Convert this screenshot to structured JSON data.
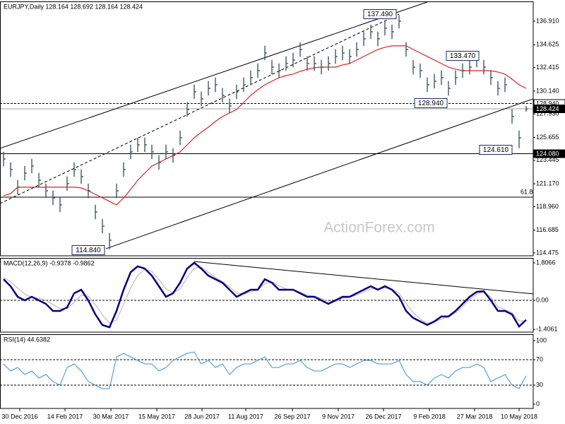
{
  "chart_data": [
    {
      "type": "ohlc",
      "title": "EURJPY,Daily  128.164 128.692 128.164 128.424",
      "watermark": "ActionForex.com",
      "xlim": [
        -0.5,
        75
      ],
      "xticks": [
        {
          "value": 2.3,
          "label": "30 Dec 2016"
        },
        {
          "value": 8.7,
          "label": "14 Feb 2017"
        },
        {
          "value": 15.2,
          "label": "30 Mar 2017"
        },
        {
          "value": 21.7,
          "label": "15 May 2017"
        },
        {
          "value": 28.1,
          "label": "28 Jun 2017"
        },
        {
          "value": 34.3,
          "label": "11 Aug 2017"
        },
        {
          "value": 40.9,
          "label": "26 Sep 2017"
        },
        {
          "value": 47.4,
          "label": "9 Nov 2017"
        },
        {
          "value": 53.8,
          "label": "26 Dec 2017"
        },
        {
          "value": 60.3,
          "label": "9 Feb 2018"
        },
        {
          "value": 66.7,
          "label": "27 Mar 2018"
        },
        {
          "value": 73.0,
          "label": "10 May 2018"
        }
      ],
      "ylim": [
        114.2,
        138.82
      ],
      "yticks": [
        {
          "value": 136.91,
          "label": "136.910"
        },
        134.625,
        132.415,
        {
          "value": 130.14,
          "label": "130.140"
        },
        {
          "value": 127.93,
          "label": "127.930"
        },
        125.655,
        123.445,
        {
          "value": 121.17,
          "label": "121.170"
        },
        {
          "value": 118.96,
          "label": "118.960"
        },
        116.685,
        114.475
      ],
      "color": "#2f4f4f",
      "high": [
        124.27,
        123.25,
        121.54,
        122.9,
        123.59,
        122.22,
        121.19,
        120.51,
        119.83,
        121.88,
        123.25,
        122.56,
        121.19,
        119.14,
        117.77,
        116.41,
        121.19,
        123.25,
        124.96,
        125.64,
        125.64,
        124.96,
        123.93,
        124.96,
        124.61,
        126.32,
        129.06,
        130.77,
        130.09,
        131.11,
        131.45,
        130.43,
        129.4,
        130.77,
        131.45,
        132.14,
        132.82,
        134.53,
        133.16,
        132.82,
        133.51,
        133.85,
        134.87,
        133.51,
        133.51,
        133.16,
        133.51,
        134.19,
        134.53,
        134.19,
        134.87,
        135.9,
        136.58,
        135.9,
        136.93,
        136.58,
        137.49,
        134.87,
        133.16,
        132.82,
        131.45,
        131.8,
        132.14,
        131.11,
        132.14,
        132.82,
        133.16,
        133.47,
        133.16,
        132.14,
        131.11,
        131.45,
        128.38,
        126.32,
        128.69
      ],
      "low": [
        122.87,
        121.85,
        120.14,
        121.5,
        122.19,
        120.82,
        119.79,
        119.11,
        118.43,
        120.48,
        121.85,
        121.16,
        119.79,
        117.74,
        116.37,
        114.84,
        119.79,
        121.85,
        123.56,
        124.24,
        124.24,
        123.56,
        122.53,
        123.56,
        123.21,
        124.92,
        127.66,
        129.37,
        128.69,
        129.71,
        130.05,
        129.03,
        128.0,
        129.37,
        130.05,
        130.74,
        131.42,
        133.13,
        131.76,
        131.42,
        132.11,
        132.45,
        133.47,
        132.11,
        132.11,
        131.76,
        132.11,
        132.79,
        133.13,
        132.79,
        133.47,
        134.5,
        135.18,
        134.5,
        135.53,
        135.18,
        136.21,
        133.47,
        131.76,
        131.42,
        130.05,
        130.4,
        130.74,
        129.71,
        130.74,
        131.42,
        131.76,
        132.45,
        131.76,
        130.74,
        129.71,
        130.05,
        126.98,
        124.61,
        128.16
      ],
      "close": [
        123.57,
        122.55,
        120.84,
        122.2,
        122.89,
        121.52,
        120.49,
        119.81,
        119.13,
        121.18,
        122.55,
        121.86,
        120.49,
        118.44,
        117.07,
        115.71,
        120.49,
        122.55,
        124.26,
        124.94,
        124.94,
        124.26,
        123.23,
        124.26,
        123.91,
        125.62,
        128.36,
        130.07,
        129.39,
        130.41,
        130.75,
        129.73,
        128.7,
        130.07,
        130.75,
        131.44,
        132.12,
        133.83,
        132.46,
        132.12,
        132.81,
        133.15,
        134.17,
        132.81,
        132.81,
        132.46,
        132.81,
        133.49,
        133.83,
        133.49,
        134.17,
        135.2,
        135.88,
        135.2,
        136.23,
        135.88,
        136.91,
        134.17,
        132.46,
        132.12,
        130.75,
        131.1,
        131.44,
        130.41,
        131.44,
        132.12,
        132.46,
        133.15,
        132.46,
        131.44,
        130.41,
        130.75,
        127.68,
        125.62,
        128.42
      ],
      "ma": {
        "color": "#e02020",
        "values": [
          120.02,
          120.22,
          120.84,
          120.84,
          120.84,
          120.84,
          120.84,
          120.84,
          120.84,
          120.84,
          120.84,
          120.77,
          120.49,
          120.15,
          119.81,
          119.47,
          119.13,
          119.81,
          120.63,
          121.52,
          122.2,
          122.89,
          123.23,
          123.57,
          123.91,
          124.26,
          124.94,
          125.62,
          126.17,
          126.65,
          127.2,
          127.68,
          128.02,
          128.36,
          129.04,
          129.73,
          130.28,
          130.75,
          131.1,
          131.44,
          131.64,
          131.78,
          132.05,
          132.26,
          132.4,
          132.46,
          132.46,
          132.46,
          132.67,
          132.81,
          133.15,
          133.49,
          133.83,
          134.17,
          134.38,
          134.52,
          134.52,
          134.52,
          134.17,
          133.83,
          133.49,
          133.15,
          132.81,
          132.46,
          132.26,
          132.12,
          132.12,
          132.12,
          132.12,
          132.12,
          131.99,
          131.78,
          131.3,
          130.75,
          130.41
        ]
      },
      "trendlines": [
        {
          "x": [
            -0.5,
            60
          ],
          "y": [
            124.6,
            138.76
          ],
          "style": "solid"
        },
        {
          "x": [
            14.5,
            75
          ],
          "y": [
            114.89,
            129.39
          ],
          "style": "solid"
        },
        {
          "x": [
            -0.5,
            56
          ],
          "y": [
            119.26,
            137.59
          ],
          "style": "dashed"
        }
      ],
      "levels": [
        {
          "value": 128.94,
          "label": "128.940",
          "style": "dashed"
        },
        {
          "value": 128.424,
          "label": "128.424",
          "style": "current"
        },
        {
          "value": 124.08,
          "label": "124.080",
          "style": "solid"
        },
        {
          "value": 119.88,
          "label": "61.8",
          "style": "fib"
        }
      ],
      "annotations": [
        "137.490",
        "133.470",
        "128.940",
        "124.610",
        "114.840"
      ]
    },
    {
      "type": "macd",
      "title": "MACD(12,26,9) -0.9378 -0.9862",
      "ylim": [
        -1.534,
        2.045
      ],
      "yticks": [
        1.8066,
        {
          "value": 0,
          "label": "0.00"
        },
        -1.4061
      ],
      "grid": "dashed",
      "series": [
        {
          "color": "#000080",
          "width": 2.5,
          "values": [
            1.02,
            0.68,
            0.17,
            0,
            0.17,
            0,
            -0.17,
            -0.51,
            -0.51,
            -0.34,
            0.34,
            0.51,
            0,
            -0.68,
            -1.19,
            -1.3,
            -0.51,
            0.51,
            1.36,
            1.64,
            1.53,
            1.19,
            0.68,
            0.17,
            0.34,
            0.85,
            1.53,
            1.81,
            1.53,
            1.19,
            1.02,
            0.85,
            0.51,
            0.17,
            0.34,
            0.51,
            0.51,
            1.02,
            0.85,
            0.51,
            0.51,
            0.51,
            0.34,
            0.17,
            0.17,
            0,
            -0.17,
            0,
            0.17,
            0.17,
            0.34,
            0.51,
            0.68,
            0.51,
            0.68,
            0.51,
            0.17,
            -0.51,
            -0.85,
            -1.02,
            -1.19,
            -1.02,
            -0.78,
            -0.78,
            -0.51,
            -0.17,
            0.17,
            0.41,
            0.44,
            0,
            -0.51,
            -0.51,
            -0.68,
            -1.26,
            -0.94
          ]
        },
        {
          "color": "#c8a8a8",
          "width": 1,
          "values": [
            1.1,
            0.9,
            0.6,
            0.3,
            0.15,
            0.1,
            0,
            -0.2,
            -0.4,
            -0.4,
            -0.1,
            0.25,
            0.2,
            -0.2,
            -0.7,
            -1.1,
            -0.95,
            -0.2,
            0.6,
            1.2,
            1.5,
            1.4,
            1.0,
            0.55,
            0.35,
            0.55,
            1.1,
            1.55,
            1.6,
            1.35,
            1.1,
            0.9,
            0.65,
            0.35,
            0.3,
            0.4,
            0.5,
            0.8,
            0.9,
            0.7,
            0.55,
            0.5,
            0.4,
            0.25,
            0.2,
            0.1,
            -0.05,
            -0.05,
            0.1,
            0.15,
            0.25,
            0.4,
            0.55,
            0.55,
            0.6,
            0.55,
            0.35,
            -0.15,
            -0.6,
            -0.9,
            -1.1,
            -1.05,
            -0.9,
            -0.8,
            -0.6,
            -0.3,
            0.05,
            0.3,
            0.4,
            0.15,
            -0.3,
            -0.45,
            -0.6,
            -1.0,
            -0.99
          ]
        }
      ],
      "trendline": {
        "x": [
          27,
          75
        ],
        "y": [
          1.87,
          0.31
        ]
      }
    },
    {
      "type": "rsi",
      "title": "RSI(14) 44.6382",
      "ylim": [
        -6.7,
        110
      ],
      "yticks": [
        100,
        70,
        30,
        0
      ],
      "grid": "dashed",
      "color": "#3a8fd8",
      "values": [
        63.3,
        52.2,
        57.8,
        46.7,
        52.2,
        41.1,
        46.7,
        35.6,
        30,
        57.8,
        63.3,
        52.2,
        35.6,
        30,
        24.4,
        24.4,
        74.4,
        80,
        74.4,
        68.9,
        63.3,
        63.3,
        52.2,
        57.8,
        68.9,
        74.4,
        80,
        82.2,
        63.3,
        68.9,
        57.8,
        63.3,
        46.7,
        57.8,
        63.3,
        63.3,
        68.9,
        74.4,
        57.8,
        57.8,
        63.3,
        63.3,
        68.9,
        57.8,
        52.2,
        52.2,
        57.8,
        63.3,
        63.3,
        57.8,
        63.3,
        68.9,
        68.9,
        63.3,
        63.3,
        63.3,
        68.9,
        46.7,
        35.6,
        35.6,
        30,
        41.1,
        46.7,
        41.1,
        52.2,
        57.8,
        57.8,
        63.3,
        57.8,
        35.6,
        41.1,
        46.7,
        30,
        24.4,
        44.64
      ]
    }
  ]
}
